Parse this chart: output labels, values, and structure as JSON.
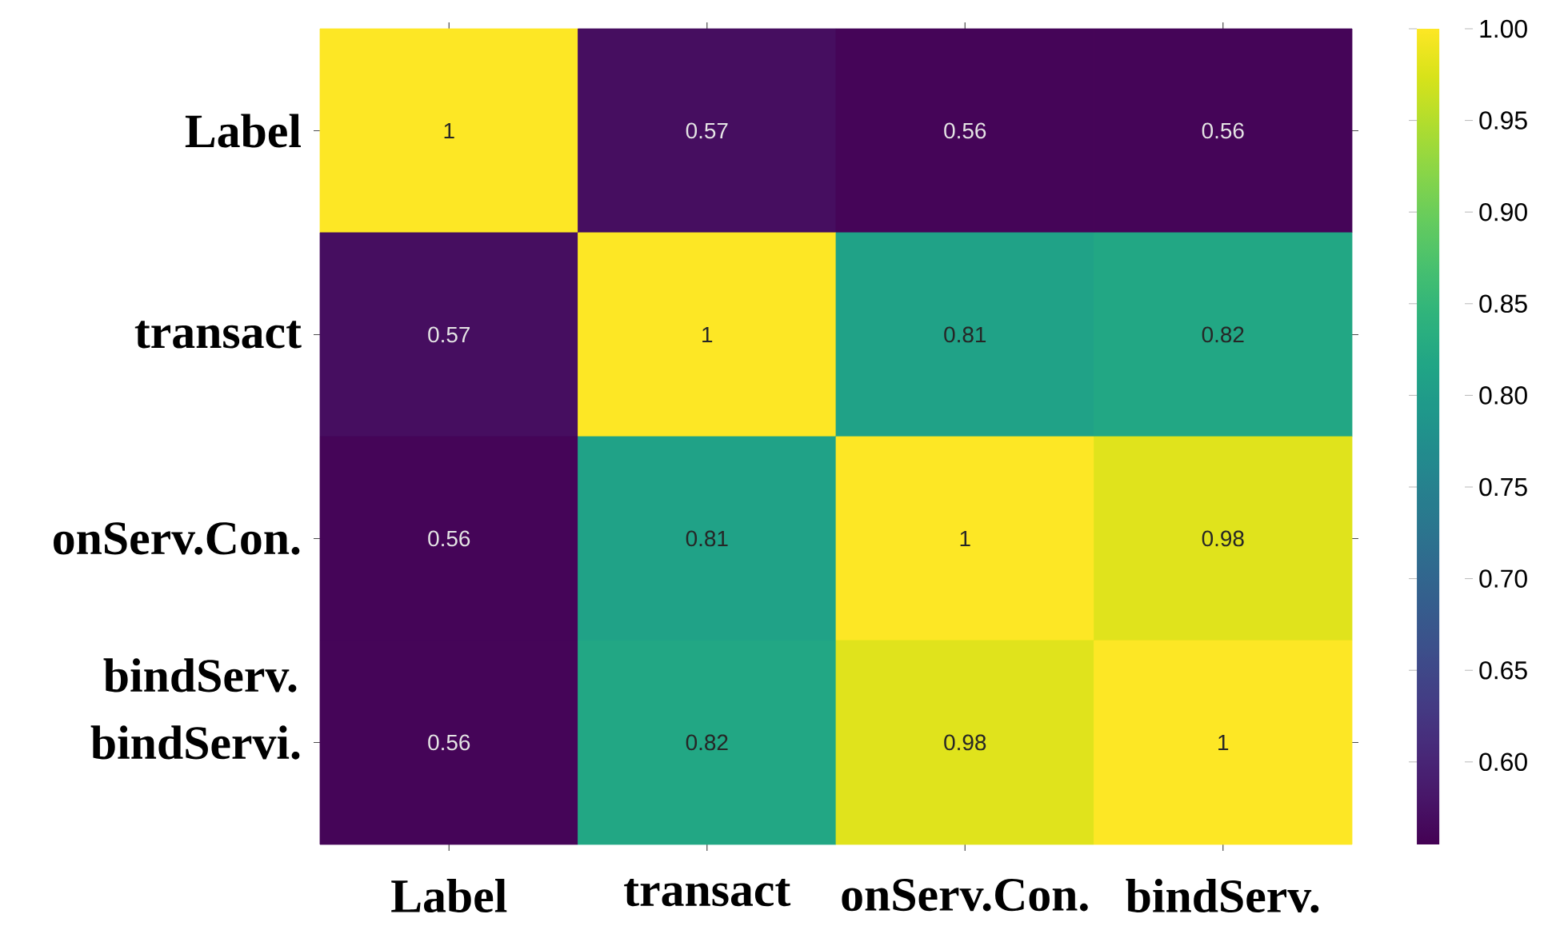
{
  "chart_data": {
    "type": "heatmap",
    "categories": [
      "Label",
      "transact",
      "onServ.Con.",
      "bindServ."
    ],
    "y_categories": [
      "Label",
      "transact",
      "onServ.Con.",
      "bindServi."
    ],
    "cells": [
      [
        1,
        0.57,
        0.56,
        0.56
      ],
      [
        0.57,
        1,
        0.81,
        0.82
      ],
      [
        0.56,
        0.81,
        1,
        0.98
      ],
      [
        0.56,
        0.82,
        0.98,
        1
      ]
    ],
    "data_labels": true,
    "clim": [
      0.555,
      1.0
    ],
    "cticks": [
      {
        "value": 0.6,
        "label": "0.60"
      },
      {
        "value": 0.65,
        "label": "0.65"
      },
      {
        "value": 0.7,
        "label": "0.70"
      },
      {
        "value": 0.75,
        "label": "0.75"
      },
      {
        "value": 0.8,
        "label": "0.80"
      },
      {
        "value": 0.85,
        "label": "0.85"
      },
      {
        "value": 0.9,
        "label": "0.90"
      },
      {
        "value": 0.95,
        "label": "0.95"
      },
      {
        "value": 1.0,
        "label": "1.00"
      }
    ],
    "annotations": [
      "bindServ."
    ]
  }
}
